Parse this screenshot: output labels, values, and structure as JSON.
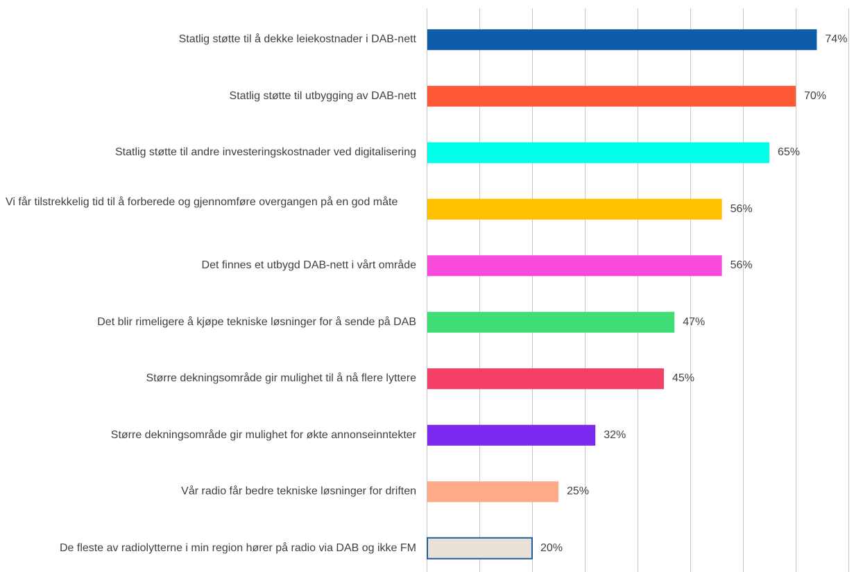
{
  "chart_data": {
    "type": "bar",
    "orientation": "horizontal",
    "categories": [
      "Statlig støtte til å dekke leiekostnader i DAB-nett",
      "Statlig støtte til utbygging av DAB-nett",
      "Statlig støtte til andre investeringskostnader ved digitalisering",
      "Vi får tilstrekkelig tid til å forberede og gjennomføre overgangen på en god måte",
      "Det finnes et utbygd DAB-nett i vårt område",
      "Det blir rimeligere å kjøpe tekniske løsninger for å sende på DAB",
      "Større dekningsområde gir mulighet til å nå flere lyttere",
      "Større dekningsområde gir mulighet for økte annonseinntekter",
      "Vår radio får bedre tekniske løsninger for driften",
      "De fleste av radiolytterne i min region hører på radio via DAB og ikke FM"
    ],
    "values": [
      74,
      70,
      65,
      56,
      56,
      47,
      45,
      32,
      25,
      20
    ],
    "value_labels": [
      "74%",
      "70%",
      "65%",
      "56%",
      "56%",
      "47%",
      "45%",
      "32%",
      "25%",
      "20%"
    ],
    "colors": [
      "#0F5CA8",
      "#FF5A36",
      "#00FFE6",
      "#FFC000",
      "#F84BDB",
      "#3FDD76",
      "#F43F67",
      "#7B28F0",
      "#FFAB8A",
      "#E8E1D8"
    ],
    "last_bar_border": "#1F5C9E",
    "xlim": [
      0,
      80
    ],
    "gridline_step": 10,
    "grid": true
  }
}
